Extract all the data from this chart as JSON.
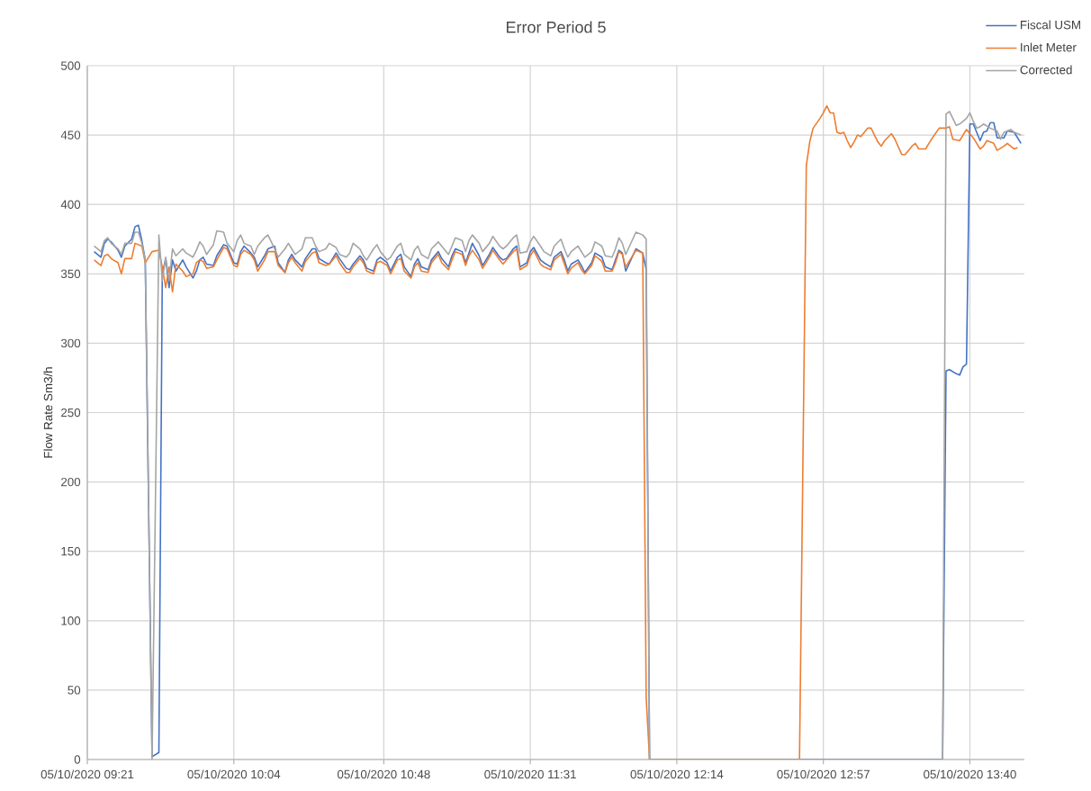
{
  "chart_data": {
    "type": "line",
    "title": "Error Period 5",
    "ylabel": "Flow Rate Sm3/h",
    "xlim": [
      "2020-10-05T09:21",
      "2020-10-05T13:56"
    ],
    "ylim": [
      0,
      500
    ],
    "xticks": [
      {
        "value": "2020-10-05T09:21",
        "label": "05/10/2020 09:21"
      },
      {
        "value": "2020-10-05T10:04",
        "label": "05/10/2020 10:04"
      },
      {
        "value": "2020-10-05T10:48",
        "label": "05/10/2020 10:48"
      },
      {
        "value": "2020-10-05T11:31",
        "label": "05/10/2020 11:31"
      },
      {
        "value": "2020-10-05T12:14",
        "label": "05/10/2020 12:14"
      },
      {
        "value": "2020-10-05T12:57",
        "label": "05/10/2020 12:57"
      },
      {
        "value": "2020-10-05T13:40",
        "label": "05/10/2020 13:40"
      }
    ],
    "yticks": [
      0,
      50,
      100,
      150,
      200,
      250,
      300,
      350,
      400,
      450,
      500
    ],
    "grid": true,
    "legend": "top right",
    "series": [
      {
        "name": "Fiscal USM",
        "color": "#4472c4",
        "x": [
          "2020-10-05T09:23",
          "2020-10-05T09:25",
          "2020-10-05T09:26",
          "2020-10-05T09:27",
          "2020-10-05T09:28",
          "2020-10-05T09:30",
          "2020-10-05T09:31",
          "2020-10-05T09:32",
          "2020-10-05T09:34",
          "2020-10-05T09:35",
          "2020-10-05T09:36",
          "2020-10-05T09:37",
          "2020-10-05T09:38",
          "2020-10-05T09:40",
          "2020-10-05T09:42",
          "2020-10-05T09:43",
          "2020-10-05T09:44",
          "2020-10-05T09:45",
          "2020-10-05T09:46",
          "2020-10-05T09:47",
          "2020-10-05T09:49",
          "2020-10-05T09:50",
          "2020-10-05T09:52",
          "2020-10-05T09:53",
          "2020-10-05T09:54",
          "2020-10-05T09:55",
          "2020-10-05T09:56",
          "2020-10-05T09:58",
          "2020-10-05T09:59",
          "2020-10-05T10:01",
          "2020-10-05T10:02",
          "2020-10-05T10:04",
          "2020-10-05T10:05",
          "2020-10-05T10:06",
          "2020-10-05T10:07",
          "2020-10-05T10:09",
          "2020-10-05T10:10",
          "2020-10-05T10:11",
          "2020-10-05T10:13",
          "2020-10-05T10:14",
          "2020-10-05T10:16",
          "2020-10-05T10:17",
          "2020-10-05T10:19",
          "2020-10-05T10:20",
          "2020-10-05T10:21",
          "2020-10-05T10:22",
          "2020-10-05T10:24",
          "2020-10-05T10:25",
          "2020-10-05T10:27",
          "2020-10-05T10:28",
          "2020-10-05T10:29",
          "2020-10-05T10:31",
          "2020-10-05T10:32",
          "2020-10-05T10:34",
          "2020-10-05T10:35",
          "2020-10-05T10:37",
          "2020-10-05T10:38",
          "2020-10-05T10:39",
          "2020-10-05T10:41",
          "2020-10-05T10:42",
          "2020-10-05T10:43",
          "2020-10-05T10:45",
          "2020-10-05T10:46",
          "2020-10-05T10:47",
          "2020-10-05T10:49",
          "2020-10-05T10:50",
          "2020-10-05T10:52",
          "2020-10-05T10:53",
          "2020-10-05T10:54",
          "2020-10-05T10:56",
          "2020-10-05T10:57",
          "2020-10-05T10:58",
          "2020-10-05T10:59",
          "2020-10-05T11:01",
          "2020-10-05T11:02",
          "2020-10-05T11:04",
          "2020-10-05T11:05",
          "2020-10-05T11:07",
          "2020-10-05T11:08",
          "2020-10-05T11:09",
          "2020-10-05T11:11",
          "2020-10-05T11:12",
          "2020-10-05T11:13",
          "2020-10-05T11:14",
          "2020-10-05T11:16",
          "2020-10-05T11:17",
          "2020-10-05T11:19",
          "2020-10-05T11:20",
          "2020-10-05T11:22",
          "2020-10-05T11:23",
          "2020-10-05T11:24",
          "2020-10-05T11:26",
          "2020-10-05T11:27",
          "2020-10-05T11:28",
          "2020-10-05T11:30",
          "2020-10-05T11:31",
          "2020-10-05T11:32",
          "2020-10-05T11:34",
          "2020-10-05T11:35",
          "2020-10-05T11:37",
          "2020-10-05T11:38",
          "2020-10-05T11:40",
          "2020-10-05T11:41",
          "2020-10-05T11:42",
          "2020-10-05T11:43",
          "2020-10-05T11:45",
          "2020-10-05T11:46",
          "2020-10-05T11:47",
          "2020-10-05T11:49",
          "2020-10-05T11:50",
          "2020-10-05T11:52",
          "2020-10-05T11:53",
          "2020-10-05T11:55",
          "2020-10-05T11:56",
          "2020-10-05T11:57",
          "2020-10-05T11:58",
          "2020-10-05T11:59",
          "2020-10-05T12:02",
          "2020-10-05T12:04",
          "2020-10-05T12:05",
          "2020-10-05T12:06",
          "2020-10-05T13:32",
          "2020-10-05T13:33",
          "2020-10-05T13:34",
          "2020-10-05T13:36",
          "2020-10-05T13:37",
          "2020-10-05T13:38",
          "2020-10-05T13:39",
          "2020-10-05T13:40",
          "2020-10-05T13:41",
          "2020-10-05T13:43",
          "2020-10-05T13:44",
          "2020-10-05T13:45",
          "2020-10-05T13:46",
          "2020-10-05T13:47",
          "2020-10-05T13:48",
          "2020-10-05T13:50",
          "2020-10-05T13:51",
          "2020-10-05T13:53",
          "2020-10-05T13:55"
        ],
        "values": [
          366,
          362,
          372,
          375,
          373,
          367,
          362,
          370,
          375,
          384,
          385,
          374,
          360,
          2,
          5,
          350,
          361,
          340,
          360,
          352,
          360,
          355,
          347,
          352,
          360,
          362,
          357,
          356,
          363,
          371,
          370,
          358,
          357,
          366,
          370,
          365,
          362,
          355,
          363,
          368,
          370,
          358,
          351,
          360,
          364,
          360,
          355,
          361,
          368,
          368,
          361,
          358,
          357,
          365,
          361,
          354,
          353,
          357,
          363,
          360,
          354,
          352,
          360,
          362,
          358,
          352,
          362,
          364,
          355,
          348,
          357,
          361,
          355,
          353,
          360,
          366,
          361,
          355,
          363,
          368,
          366,
          358,
          365,
          372,
          363,
          356,
          364,
          369,
          362,
          360,
          361,
          368,
          370,
          355,
          358,
          366,
          369,
          360,
          358,
          355,
          362,
          366,
          360,
          352,
          357,
          360,
          356,
          351,
          358,
          365,
          362,
          355,
          353,
          360,
          367,
          365,
          352,
          368,
          365,
          353,
          0,
          0,
          280,
          281,
          278,
          277,
          283,
          285,
          458,
          458,
          446,
          452,
          453,
          459,
          459,
          448,
          448,
          453,
          452,
          444
        ]
      },
      {
        "name": "Inlet Meter",
        "color": "#ed7d31",
        "x": [
          "2020-10-05T09:23",
          "2020-10-05T09:25",
          "2020-10-05T09:26",
          "2020-10-05T09:27",
          "2020-10-05T09:28",
          "2020-10-05T09:30",
          "2020-10-05T09:31",
          "2020-10-05T09:32",
          "2020-10-05T09:34",
          "2020-10-05T09:35",
          "2020-10-05T09:36",
          "2020-10-05T09:37",
          "2020-10-05T09:38",
          "2020-10-05T09:40",
          "2020-10-05T09:42",
          "2020-10-05T09:43",
          "2020-10-05T09:44",
          "2020-10-05T09:45",
          "2020-10-05T09:46",
          "2020-10-05T09:47",
          "2020-10-05T09:49",
          "2020-10-05T09:50",
          "2020-10-05T09:52",
          "2020-10-05T09:53",
          "2020-10-05T09:54",
          "2020-10-05T09:55",
          "2020-10-05T09:56",
          "2020-10-05T09:58",
          "2020-10-05T09:59",
          "2020-10-05T10:01",
          "2020-10-05T10:02",
          "2020-10-05T10:04",
          "2020-10-05T10:05",
          "2020-10-05T10:06",
          "2020-10-05T10:07",
          "2020-10-05T10:09",
          "2020-10-05T10:10",
          "2020-10-05T10:11",
          "2020-10-05T10:13",
          "2020-10-05T10:14",
          "2020-10-05T10:16",
          "2020-10-05T10:17",
          "2020-10-05T10:19",
          "2020-10-05T10:20",
          "2020-10-05T10:21",
          "2020-10-05T10:22",
          "2020-10-05T10:24",
          "2020-10-05T10:25",
          "2020-10-05T10:27",
          "2020-10-05T10:28",
          "2020-10-05T10:29",
          "2020-10-05T10:31",
          "2020-10-05T10:32",
          "2020-10-05T10:34",
          "2020-10-05T10:35",
          "2020-10-05T10:37",
          "2020-10-05T10:38",
          "2020-10-05T10:39",
          "2020-10-05T10:41",
          "2020-10-05T10:42",
          "2020-10-05T10:43",
          "2020-10-05T10:45",
          "2020-10-05T10:46",
          "2020-10-05T10:47",
          "2020-10-05T10:49",
          "2020-10-05T10:50",
          "2020-10-05T10:52",
          "2020-10-05T10:53",
          "2020-10-05T10:54",
          "2020-10-05T10:56",
          "2020-10-05T10:57",
          "2020-10-05T10:58",
          "2020-10-05T10:59",
          "2020-10-05T11:01",
          "2020-10-05T11:02",
          "2020-10-05T11:04",
          "2020-10-05T11:05",
          "2020-10-05T11:07",
          "2020-10-05T11:08",
          "2020-10-05T11:09",
          "2020-10-05T11:11",
          "2020-10-05T11:12",
          "2020-10-05T11:13",
          "2020-10-05T11:14",
          "2020-10-05T11:16",
          "2020-10-05T11:17",
          "2020-10-05T11:19",
          "2020-10-05T11:20",
          "2020-10-05T11:22",
          "2020-10-05T11:23",
          "2020-10-05T11:24",
          "2020-10-05T11:26",
          "2020-10-05T11:27",
          "2020-10-05T11:28",
          "2020-10-05T11:30",
          "2020-10-05T11:31",
          "2020-10-05T11:32",
          "2020-10-05T11:34",
          "2020-10-05T11:35",
          "2020-10-05T11:37",
          "2020-10-05T11:38",
          "2020-10-05T11:40",
          "2020-10-05T11:41",
          "2020-10-05T11:42",
          "2020-10-05T11:43",
          "2020-10-05T11:45",
          "2020-10-05T11:46",
          "2020-10-05T11:47",
          "2020-10-05T11:49",
          "2020-10-05T11:50",
          "2020-10-05T11:52",
          "2020-10-05T11:53",
          "2020-10-05T11:55",
          "2020-10-05T11:56",
          "2020-10-05T11:57",
          "2020-10-05T11:58",
          "2020-10-05T11:59",
          "2020-10-05T12:02",
          "2020-10-05T12:04",
          "2020-10-05T12:05",
          "2020-10-05T12:06",
          "2020-10-05T12:50",
          "2020-10-05T12:52",
          "2020-10-05T12:53",
          "2020-10-05T12:54",
          "2020-10-05T12:56",
          "2020-10-05T12:57",
          "2020-10-05T12:58",
          "2020-10-05T12:59",
          "2020-10-05T13:00",
          "2020-10-05T13:01",
          "2020-10-05T13:02",
          "2020-10-05T13:03",
          "2020-10-05T13:04",
          "2020-10-05T13:05",
          "2020-10-05T13:06",
          "2020-10-05T13:07",
          "2020-10-05T13:08",
          "2020-10-05T13:10",
          "2020-10-05T13:11",
          "2020-10-05T13:13",
          "2020-10-05T13:14",
          "2020-10-05T13:15",
          "2020-10-05T13:17",
          "2020-10-05T13:18",
          "2020-10-05T13:20",
          "2020-10-05T13:21",
          "2020-10-05T13:23",
          "2020-10-05T13:24",
          "2020-10-05T13:25",
          "2020-10-05T13:27",
          "2020-10-05T13:29",
          "2020-10-05T13:31",
          "2020-10-05T13:33",
          "2020-10-05T13:34",
          "2020-10-05T13:35",
          "2020-10-05T13:37",
          "2020-10-05T13:39",
          "2020-10-05T13:41",
          "2020-10-05T13:43",
          "2020-10-05T13:44",
          "2020-10-05T13:45",
          "2020-10-05T13:47",
          "2020-10-05T13:48",
          "2020-10-05T13:50",
          "2020-10-05T13:51",
          "2020-10-05T13:53",
          "2020-10-05T13:54"
        ],
        "values": [
          360,
          356,
          363,
          364,
          361,
          358,
          350,
          361,
          361,
          372,
          371,
          370,
          358,
          366,
          367,
          355,
          340,
          355,
          337,
          357,
          352,
          348,
          350,
          358,
          360,
          359,
          354,
          355,
          360,
          369,
          368,
          356,
          355,
          364,
          367,
          364,
          360,
          352,
          360,
          366,
          366,
          356,
          351,
          358,
          362,
          358,
          352,
          359,
          365,
          366,
          358,
          356,
          357,
          363,
          358,
          351,
          351,
          355,
          361,
          358,
          352,
          350,
          358,
          359,
          356,
          350,
          360,
          361,
          352,
          347,
          355,
          358,
          352,
          351,
          358,
          364,
          358,
          353,
          360,
          366,
          364,
          356,
          363,
          367,
          360,
          354,
          362,
          367,
          360,
          357,
          360,
          366,
          368,
          353,
          356,
          363,
          367,
          357,
          355,
          353,
          360,
          364,
          357,
          350,
          354,
          358,
          353,
          350,
          356,
          363,
          359,
          352,
          352,
          358,
          366,
          364,
          355,
          367,
          365,
          45,
          0,
          0,
          428,
          445,
          455,
          462,
          466,
          471,
          466,
          466,
          452,
          451,
          452,
          446,
          441,
          445,
          450,
          449,
          455,
          455,
          445,
          442,
          446,
          451,
          447,
          436,
          436,
          442,
          444,
          440,
          440,
          448,
          455,
          455,
          456,
          447,
          446,
          454,
          448,
          440,
          442,
          446,
          444,
          439,
          442,
          444,
          440,
          441
        ]
      },
      {
        "name": "Corrected",
        "color": "#a5a5a5",
        "x": [
          "2020-10-05T09:23",
          "2020-10-05T09:25",
          "2020-10-05T09:26",
          "2020-10-05T09:27",
          "2020-10-05T09:28",
          "2020-10-05T09:30",
          "2020-10-05T09:31",
          "2020-10-05T09:32",
          "2020-10-05T09:34",
          "2020-10-05T09:35",
          "2020-10-05T09:36",
          "2020-10-05T09:37",
          "2020-10-05T09:38",
          "2020-10-05T09:40",
          "2020-10-05T09:42",
          "2020-10-05T09:43",
          "2020-10-05T09:44",
          "2020-10-05T09:45",
          "2020-10-05T09:46",
          "2020-10-05T09:47",
          "2020-10-05T09:49",
          "2020-10-05T09:50",
          "2020-10-05T09:52",
          "2020-10-05T09:53",
          "2020-10-05T09:54",
          "2020-10-05T09:55",
          "2020-10-05T09:56",
          "2020-10-05T09:58",
          "2020-10-05T09:59",
          "2020-10-05T10:01",
          "2020-10-05T10:02",
          "2020-10-05T10:04",
          "2020-10-05T10:05",
          "2020-10-05T10:06",
          "2020-10-05T10:07",
          "2020-10-05T10:09",
          "2020-10-05T10:10",
          "2020-10-05T10:11",
          "2020-10-05T10:13",
          "2020-10-05T10:14",
          "2020-10-05T10:16",
          "2020-10-05T10:17",
          "2020-10-05T10:19",
          "2020-10-05T10:20",
          "2020-10-05T10:21",
          "2020-10-05T10:22",
          "2020-10-05T10:24",
          "2020-10-05T10:25",
          "2020-10-05T10:27",
          "2020-10-05T10:28",
          "2020-10-05T10:29",
          "2020-10-05T10:31",
          "2020-10-05T10:32",
          "2020-10-05T10:34",
          "2020-10-05T10:35",
          "2020-10-05T10:37",
          "2020-10-05T10:38",
          "2020-10-05T10:39",
          "2020-10-05T10:41",
          "2020-10-05T10:42",
          "2020-10-05T10:43",
          "2020-10-05T10:45",
          "2020-10-05T10:46",
          "2020-10-05T10:47",
          "2020-10-05T10:49",
          "2020-10-05T10:50",
          "2020-10-05T10:52",
          "2020-10-05T10:53",
          "2020-10-05T10:54",
          "2020-10-05T10:56",
          "2020-10-05T10:57",
          "2020-10-05T10:58",
          "2020-10-05T10:59",
          "2020-10-05T11:01",
          "2020-10-05T11:02",
          "2020-10-05T11:04",
          "2020-10-05T11:05",
          "2020-10-05T11:07",
          "2020-10-05T11:08",
          "2020-10-05T11:09",
          "2020-10-05T11:11",
          "2020-10-05T11:12",
          "2020-10-05T11:13",
          "2020-10-05T11:14",
          "2020-10-05T11:16",
          "2020-10-05T11:17",
          "2020-10-05T11:19",
          "2020-10-05T11:20",
          "2020-10-05T11:22",
          "2020-10-05T11:23",
          "2020-10-05T11:24",
          "2020-10-05T11:26",
          "2020-10-05T11:27",
          "2020-10-05T11:28",
          "2020-10-05T11:30",
          "2020-10-05T11:31",
          "2020-10-05T11:32",
          "2020-10-05T11:34",
          "2020-10-05T11:35",
          "2020-10-05T11:37",
          "2020-10-05T11:38",
          "2020-10-05T11:40",
          "2020-10-05T11:41",
          "2020-10-05T11:42",
          "2020-10-05T11:43",
          "2020-10-05T11:45",
          "2020-10-05T11:46",
          "2020-10-05T11:47",
          "2020-10-05T11:49",
          "2020-10-05T11:50",
          "2020-10-05T11:52",
          "2020-10-05T11:53",
          "2020-10-05T11:55",
          "2020-10-05T11:56",
          "2020-10-05T11:57",
          "2020-10-05T11:58",
          "2020-10-05T11:59",
          "2020-10-05T12:02",
          "2020-10-05T12:04",
          "2020-10-05T12:05",
          "2020-10-05T12:06",
          "2020-10-05T13:32",
          "2020-10-05T13:33",
          "2020-10-05T13:34",
          "2020-10-05T13:36",
          "2020-10-05T13:37",
          "2020-10-05T13:39",
          "2020-10-05T13:40",
          "2020-10-05T13:41",
          "2020-10-05T13:42",
          "2020-10-05T13:43",
          "2020-10-05T13:44",
          "2020-10-05T13:46",
          "2020-10-05T13:48",
          "2020-10-05T13:49",
          "2020-10-05T13:50",
          "2020-10-05T13:52",
          "2020-10-05T13:53",
          "2020-10-05T13:55"
        ],
        "values": [
          370,
          366,
          374,
          376,
          372,
          368,
          364,
          372,
          372,
          380,
          380,
          372,
          360,
          0,
          378,
          345,
          362,
          345,
          368,
          363,
          368,
          365,
          362,
          367,
          373,
          370,
          364,
          371,
          381,
          380,
          372,
          366,
          374,
          378,
          372,
          370,
          364,
          370,
          376,
          378,
          368,
          362,
          368,
          372,
          368,
          364,
          368,
          376,
          376,
          370,
          366,
          368,
          372,
          369,
          364,
          362,
          365,
          372,
          368,
          363,
          360,
          368,
          371,
          366,
          360,
          362,
          370,
          372,
          364,
          360,
          367,
          370,
          364,
          361,
          368,
          373,
          370,
          364,
          370,
          376,
          374,
          366,
          374,
          378,
          372,
          366,
          372,
          377,
          370,
          368,
          370,
          376,
          378,
          365,
          366,
          373,
          377,
          370,
          366,
          363,
          370,
          375,
          368,
          362,
          366,
          370,
          366,
          362,
          366,
          373,
          370,
          363,
          362,
          368,
          376,
          372,
          364,
          380,
          378,
          375,
          0,
          0,
          465,
          467,
          457,
          458,
          462,
          466,
          460,
          455,
          456,
          458,
          455,
          453,
          447,
          452,
          454,
          452,
          450
        ]
      }
    ]
  }
}
